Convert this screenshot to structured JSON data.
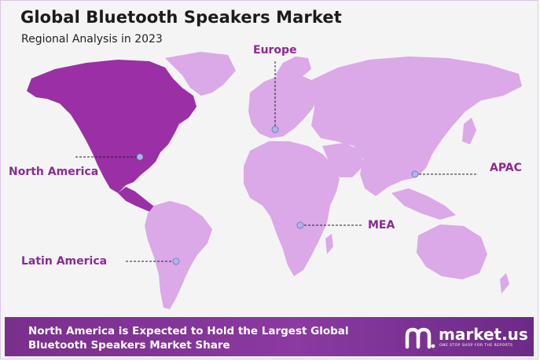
{
  "title": "Global Bluetooth Speakers Market",
  "subtitle": "Regional Analysis in 2023",
  "regions": {
    "europe": "Europe",
    "north_america": "North America",
    "apac": "APAC",
    "mea": "MEA",
    "latin_america": "Latin America"
  },
  "colors": {
    "highlight": "#9a2fa6",
    "land": "#dba8e8",
    "label": "#8b2a96",
    "marker": "#a9b8ec"
  },
  "footer": {
    "line1": "North America is Expected to Hold the Largest Global",
    "line2": "Bluetooth Speakers Market Share"
  },
  "brand": {
    "name": "market.us",
    "tagline": "ONE STOP SHOP FOR THE REPORTS",
    "icon": "market-us-logo-icon"
  }
}
